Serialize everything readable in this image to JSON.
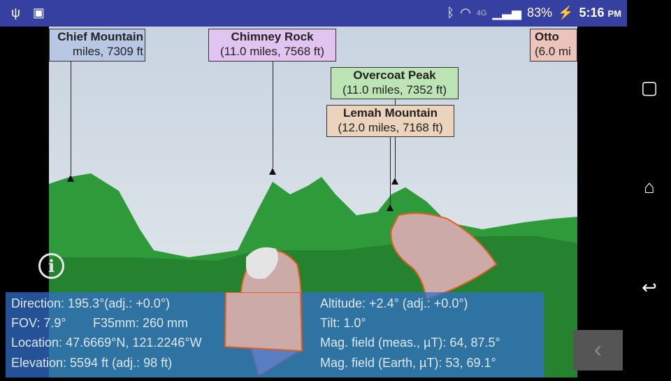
{
  "status_bar": {
    "battery": "83%",
    "time": "5:16",
    "ampm": "PM",
    "network": "4G",
    "icons": [
      "usb-icon",
      "android-icon",
      "bluetooth-icon",
      "wifi-icon",
      "signal-icon",
      "battery-charging-icon"
    ]
  },
  "peaks": [
    {
      "name": "Chief Mountain",
      "detail": "miles, 7309 ft",
      "color": "#b8c8e4"
    },
    {
      "name": "Chimney Rock",
      "detail": "(11.0 miles, 7568 ft)",
      "color": "#e2c4f0"
    },
    {
      "name": "Otto",
      "detail": "(6.0 mi",
      "color": "#ecc4bc"
    },
    {
      "name": "Overcoat Peak",
      "detail": "(11.0 miles, 7352 ft)",
      "color": "#bce4b4"
    },
    {
      "name": "Lemah Mountain",
      "detail": "(12.0 miles, 7168 ft)",
      "color": "#ecd4bc"
    }
  ],
  "info": {
    "direction": "Direction: 195.3°(adj.: +0.0°)",
    "fov": "FOV: 7.9°",
    "f35": "F35mm: 260 mm",
    "location": "Location: 47.6669°N, 121.2246°W",
    "elevation": "Elevation: 5594 ft (adj.: 98 ft)",
    "altitude": "Altitude: +2.4° (adj.: +0.0°)",
    "tilt": "Tilt: 1.0°",
    "mag_meas": "Mag. field (meas., µT): 64, 87.5°",
    "mag_earth": "Mag. field (Earth, µT): 53, 69.1°"
  },
  "info_button": "i",
  "back_button": "‹",
  "nav": {
    "recents": "▢",
    "home": "⌂",
    "back": "↩"
  }
}
